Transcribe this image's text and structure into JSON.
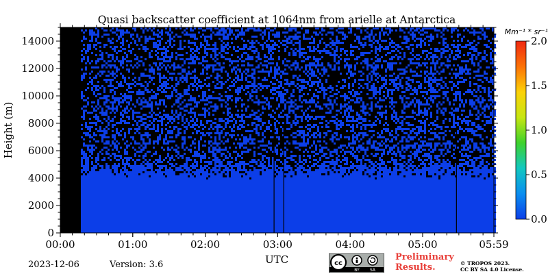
{
  "colors": {
    "background_signal": "#0c46e0",
    "no_signal": "#000000",
    "colormap": [
      "#0c3ee8",
      "#0a8ef0",
      "#12c8c0",
      "#3ed22c",
      "#c6e612",
      "#fcd208",
      "#fc7206",
      "#f02810"
    ],
    "preliminary": "#e8403a"
  },
  "chart_data": {
    "type": "heatmap",
    "title": "Quasi backscatter coefficient at 1064nm from arielle at Antarctica",
    "xlabel": "UTC",
    "ylabel": "Height (m)",
    "x_ticks": [
      "00:00",
      "01:00",
      "02:00",
      "03:00",
      "04:00",
      "05:00",
      "05:59"
    ],
    "x_tick_minutes": [
      0,
      60,
      120,
      180,
      240,
      300,
      359
    ],
    "xlim_minutes": [
      0,
      359
    ],
    "y_ticks": [
      "0",
      "2000",
      "4000",
      "6000",
      "8000",
      "10000",
      "12000",
      "14000"
    ],
    "y_tick_values": [
      0,
      2000,
      4000,
      6000,
      8000,
      10000,
      12000,
      14000
    ],
    "ylim": [
      0,
      15000
    ],
    "colorbar": {
      "unit": "Mm⁻¹ * sr⁻¹",
      "ticks": [
        "0.0",
        "0.5",
        "1.0",
        "1.5",
        "2.0"
      ],
      "tick_values": [
        0,
        0.5,
        1.0,
        1.5,
        2.0
      ],
      "range": [
        0,
        2.0
      ]
    },
    "features": {
      "no_data_minutes": [
        [
          0,
          17
        ]
      ],
      "signal_fill_top_m": 4400,
      "noise_fill_fraction": 0.38,
      "vertical_gap_lines_minutes": [
        177,
        185,
        328
      ],
      "value_in_filled_region": 0.05
    }
  },
  "footer": {
    "date": "2023-12-06",
    "version": "Version: 3.6",
    "preliminary_line1": "Preliminary",
    "preliminary_line2": "Results.",
    "copyright_line1": "© TROPOS 2023.",
    "copyright_line2": "CC BY SA 4.0 License.",
    "cc_labels": [
      "cc",
      "BY",
      "SA"
    ]
  }
}
